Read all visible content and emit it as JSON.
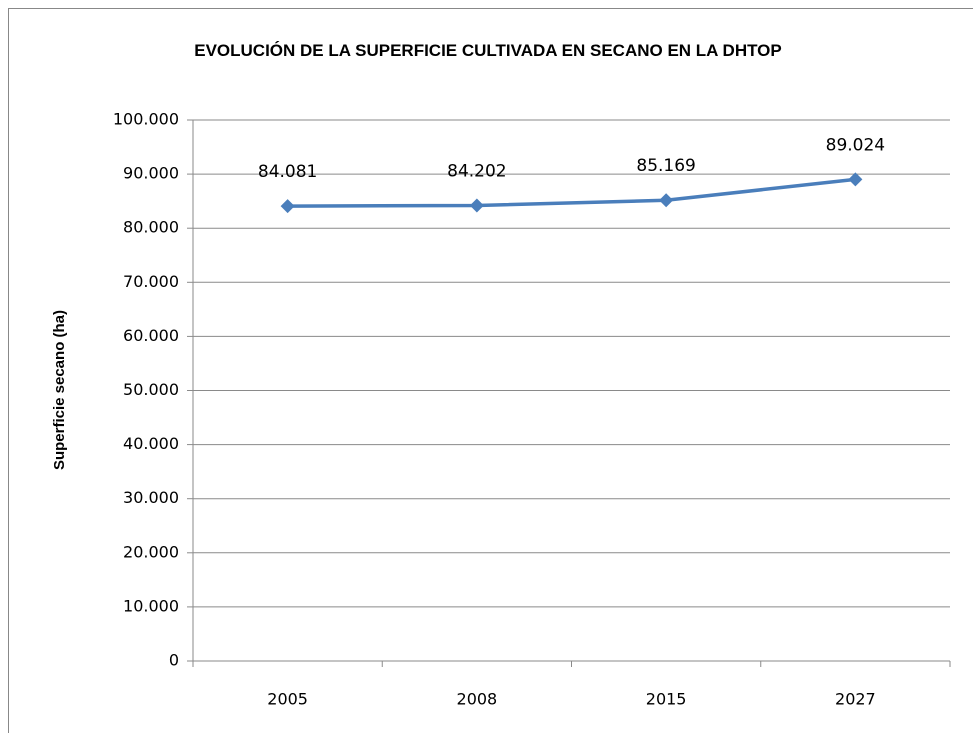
{
  "chart_data": {
    "type": "line",
    "title": "EVOLUCIÓN DE LA SUPERFICIE CULTIVADA EN SECANO EN LA DHTOP",
    "y_label": "Superficie secano (ha)",
    "categories": [
      "2005",
      "2008",
      "2015",
      "2027"
    ],
    "values": [
      84081,
      84202,
      85169,
      89024
    ],
    "value_labels": [
      "84.081",
      "84.202",
      "85.169",
      "89.024"
    ],
    "color": "#4a7ebb",
    "ylim": [
      0,
      100000
    ],
    "yticks": [
      0,
      {
        "value": 10000,
        "label": "10.000"
      },
      {
        "value": 20000,
        "label": "20.000"
      },
      {
        "value": 30000,
        "label": "30.000"
      },
      {
        "value": 40000,
        "label": "40.000"
      },
      {
        "value": 50000,
        "label": "50.000"
      },
      {
        "value": 60000,
        "label": "60.000"
      },
      {
        "value": 70000,
        "label": "70.000"
      },
      {
        "value": 80000,
        "label": "80.000"
      },
      {
        "value": 90000,
        "label": "90.000"
      },
      {
        "value": 100000,
        "label": "100.000"
      }
    ],
    "grid": true
  }
}
